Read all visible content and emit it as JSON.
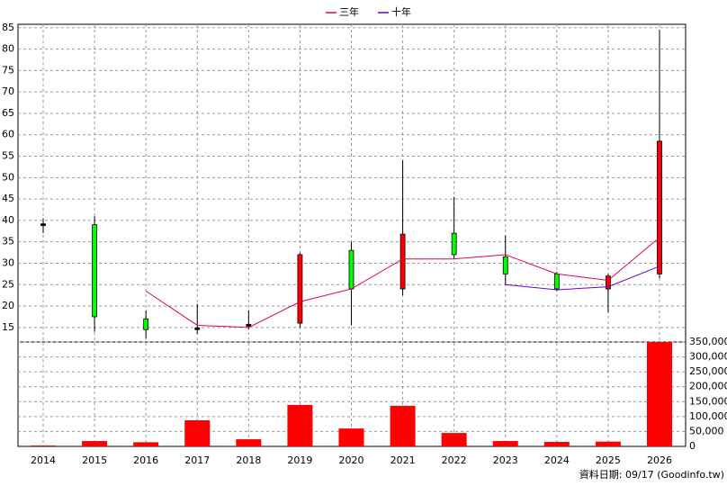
{
  "chart_data": {
    "type": "candlestick",
    "categories": [
      "2014",
      "2015",
      "2016",
      "2017",
      "2018",
      "2019",
      "2020",
      "2021",
      "2022",
      "2023",
      "2024",
      "2025",
      "2026"
    ],
    "ohlc": {
      "open": [
        39,
        39,
        17,
        14.7,
        15.5,
        16,
        33,
        24,
        37,
        31.5,
        27.5,
        24,
        27.5
      ],
      "close": [
        39,
        17.5,
        14.5,
        14.7,
        15.5,
        32,
        24,
        36.8,
        32,
        27.5,
        24,
        27,
        58.5
      ],
      "high": [
        40.5,
        41,
        19,
        20.5,
        19,
        32.5,
        35,
        54,
        45.5,
        36.5,
        28,
        27.5,
        84.5
      ],
      "low": [
        37,
        14,
        12.5,
        13.5,
        14.5,
        15,
        15.5,
        22.5,
        31,
        25,
        23.5,
        18.5,
        26.5
      ]
    },
    "up_color": "#ff0000",
    "down_color": "#00ff00",
    "flat_color": "#000000",
    "series": [
      {
        "name": "三年",
        "color": "#e0005a",
        "values": [
          null,
          null,
          23.5,
          15.5,
          15,
          21,
          24,
          31,
          31,
          32,
          27.5,
          26,
          36
        ]
      },
      {
        "name": "十年",
        "color": "#6a00d0",
        "values": [
          null,
          null,
          null,
          null,
          null,
          null,
          null,
          null,
          null,
          25,
          23.8,
          24.5,
          29.3
        ]
      }
    ],
    "ylim": [
      11.6,
      85.8
    ],
    "yticks": [
      15,
      20,
      25,
      30,
      35,
      40,
      45,
      50,
      55,
      60,
      65,
      70,
      75,
      80,
      85
    ],
    "volume": {
      "color": "#ff0000",
      "values": [
        3000,
        18000,
        14000,
        87500,
        24000,
        139000,
        60000,
        136000,
        45000,
        18000,
        15000,
        16000,
        350000
      ]
    },
    "y2lim": [
      0,
      350000
    ],
    "y2ticks": [
      0,
      {
        "value": 50000,
        "label": "50,000"
      },
      {
        "value": 100000,
        "label": "100,000"
      },
      {
        "value": 150000,
        "label": "150,000"
      },
      {
        "value": 200000,
        "label": "200,000"
      },
      {
        "value": 250000,
        "label": "250,000"
      },
      {
        "value": 300000,
        "label": "300,000"
      },
      {
        "value": 350000,
        "label": "350,000"
      }
    ],
    "grid": true,
    "legend": "top",
    "footer": "資料日期: 09/17 (Goodinfo.tw)"
  }
}
